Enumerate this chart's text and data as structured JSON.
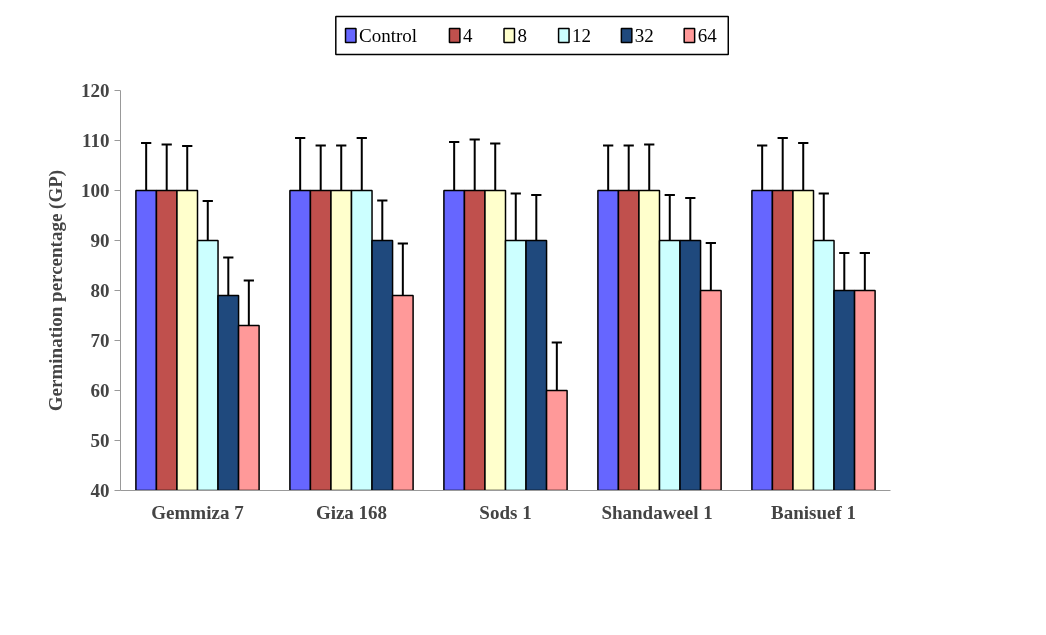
{
  "chart_data": {
    "type": "bar",
    "ylabel": "Germination percentage (GP)",
    "categories": [
      "Gemmiza 7",
      "Giza 168",
      "Sods 1",
      "Shandaweel  1",
      "Banisuef 1"
    ],
    "series": [
      {
        "name": "Control",
        "color": "#6666ff",
        "values": [
          100,
          100,
          100,
          100,
          100
        ],
        "errors": [
          [
            100,
            109.5
          ],
          [
            100,
            110.5
          ],
          [
            100,
            109.7
          ],
          [
            100,
            109
          ],
          [
            100,
            109
          ]
        ]
      },
      {
        "name": "4",
        "color": "#c0504d",
        "values": [
          100,
          100,
          100,
          100,
          100
        ],
        "errors": [
          [
            100,
            109.2
          ],
          [
            100,
            109
          ],
          [
            100,
            110.2
          ],
          [
            100,
            109
          ],
          [
            100,
            110.5
          ]
        ]
      },
      {
        "name": "8",
        "color": "#ffffcc",
        "values": [
          100,
          100,
          100,
          100,
          100
        ],
        "errors": [
          [
            100,
            108.9
          ],
          [
            100,
            109
          ],
          [
            100,
            109.4
          ],
          [
            100,
            109.2
          ],
          [
            100,
            109.5
          ]
        ]
      },
      {
        "name": "12",
        "color": "#ccffff",
        "values": [
          90,
          100,
          90,
          90,
          90
        ],
        "errors": [
          [
            90,
            97.9
          ],
          [
            100,
            110.5
          ],
          [
            90,
            99.4
          ],
          [
            90,
            99.1
          ],
          [
            90,
            99.4
          ]
        ]
      },
      {
        "name": "32",
        "color": "#1f497d",
        "values": [
          79,
          90,
          90,
          90,
          80
        ],
        "errors": [
          [
            79,
            86.6
          ],
          [
            90,
            98
          ],
          [
            90,
            99.1
          ],
          [
            90,
            98.5
          ],
          [
            80,
            87.5
          ]
        ]
      },
      {
        "name": "64",
        "color": "#ff9999",
        "values": [
          73,
          79,
          60,
          80,
          80
        ],
        "errors": [
          [
            73,
            82
          ],
          [
            79,
            89.4
          ],
          [
            60,
            69.6
          ],
          [
            80,
            89.5
          ],
          [
            80,
            87.5
          ]
        ]
      }
    ],
    "ylim": [
      40,
      120
    ],
    "yticks": [
      40,
      50,
      60,
      70,
      80,
      90,
      100,
      110,
      120
    ],
    "grid": false,
    "legend": "top"
  }
}
